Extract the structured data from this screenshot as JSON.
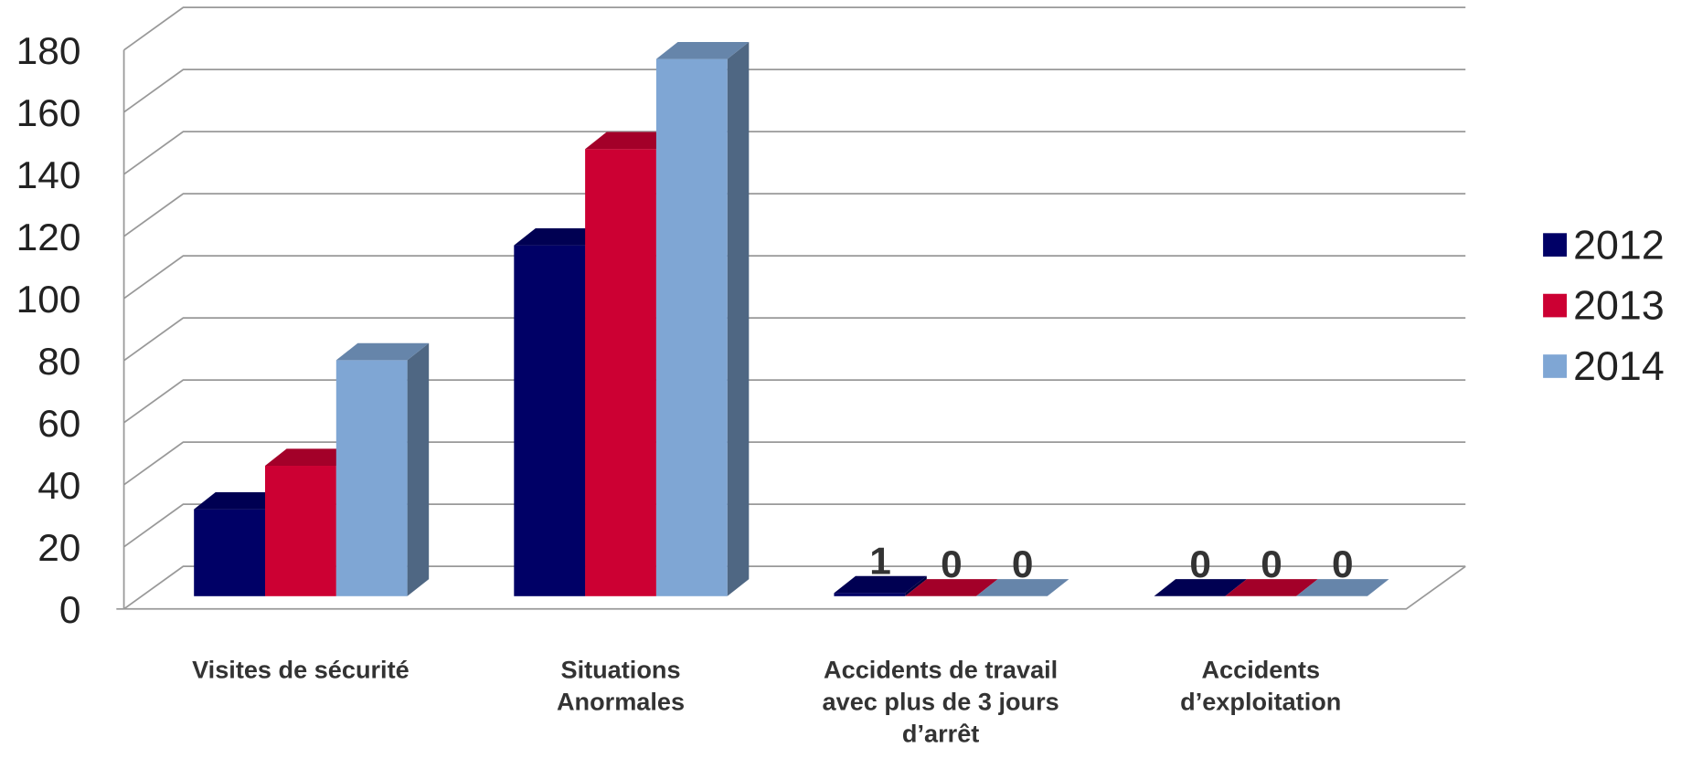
{
  "chart_data": {
    "type": "bar3d",
    "categories": [
      "Visites de sécurité",
      "Situations\nAnormales",
      "Accidents de travail\navec plus de 3 jours\nd’arrêt",
      "Accidents\nd’exploitation"
    ],
    "series": [
      {
        "name": "2012",
        "color": "#000066",
        "values": [
          28,
          113,
          1,
          0
        ],
        "value_labels": [
          null,
          null,
          "1",
          "0"
        ]
      },
      {
        "name": "2013",
        "color": "#cc0033",
        "values": [
          42,
          144,
          0,
          0
        ],
        "value_labels": [
          null,
          null,
          "0",
          "0"
        ]
      },
      {
        "name": "2014",
        "color": "#7fa6d4",
        "values": [
          76,
          173,
          0,
          0
        ],
        "value_labels": [
          null,
          null,
          "0",
          "0"
        ]
      }
    ],
    "ylim": [
      0,
      180
    ],
    "yticks": [
      0,
      20,
      40,
      60,
      80,
      100,
      120,
      140,
      160,
      180
    ],
    "grid": true,
    "legend": "right"
  }
}
